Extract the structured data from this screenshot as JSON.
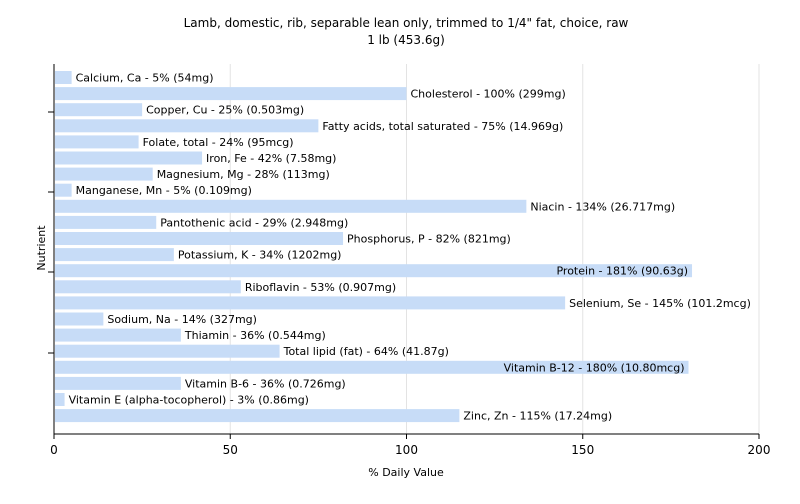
{
  "chart_data": {
    "type": "bar",
    "orientation": "horizontal",
    "title": "Lamb, domestic, rib, separable lean only, trimmed to 1/4\" fat, choice, raw",
    "subtitle": "1 lb (453.6g)",
    "xlabel": "% Daily Value",
    "ylabel": "Nutrient",
    "xlim": [
      0,
      200
    ],
    "xticks": [
      0,
      50,
      100,
      150,
      200
    ],
    "grid": "vertical",
    "bar_color": "#c7dcf7",
    "categories": [
      "Calcium, Ca",
      "Cholesterol",
      "Copper, Cu",
      "Fatty acids, total saturated",
      "Folate, total",
      "Iron, Fe",
      "Magnesium, Mg",
      "Manganese, Mn",
      "Niacin",
      "Pantothenic acid",
      "Phosphorus, P",
      "Potassium, K",
      "Protein",
      "Riboflavin",
      "Selenium, Se",
      "Sodium, Na",
      "Thiamin",
      "Total lipid (fat)",
      "Vitamin B-12",
      "Vitamin B-6",
      "Vitamin E (alpha-tocopherol)",
      "Zinc, Zn"
    ],
    "values": [
      5,
      100,
      25,
      75,
      24,
      42,
      28,
      5,
      134,
      29,
      82,
      34,
      181,
      53,
      145,
      14,
      36,
      64,
      180,
      36,
      3,
      115
    ],
    "labels": [
      "Calcium, Ca - 5% (54mg)",
      "Cholesterol - 100% (299mg)",
      "Copper, Cu - 25% (0.503mg)",
      "Fatty acids, total saturated - 75% (14.969g)",
      "Folate, total - 24% (95mcg)",
      "Iron, Fe - 42% (7.58mg)",
      "Magnesium, Mg - 28% (113mg)",
      "Manganese, Mn - 5% (0.109mg)",
      "Niacin - 134% (26.717mg)",
      "Pantothenic acid - 29% (2.948mg)",
      "Phosphorus, P - 82% (821mg)",
      "Potassium, K - 34% (1202mg)",
      "Protein - 181% (90.63g)",
      "Riboflavin - 53% (0.907mg)",
      "Selenium, Se - 145% (101.2mcg)",
      "Sodium, Na - 14% (327mg)",
      "Thiamin - 36% (0.544mg)",
      "Total lipid (fat) - 64% (41.87g)",
      "Vitamin B-12 - 180% (10.80mcg)",
      "Vitamin B-6 - 36% (0.726mg)",
      "Vitamin E (alpha-tocopherol) - 3% (0.86mg)",
      "Zinc, Zn - 115% (17.24mg)"
    ]
  }
}
